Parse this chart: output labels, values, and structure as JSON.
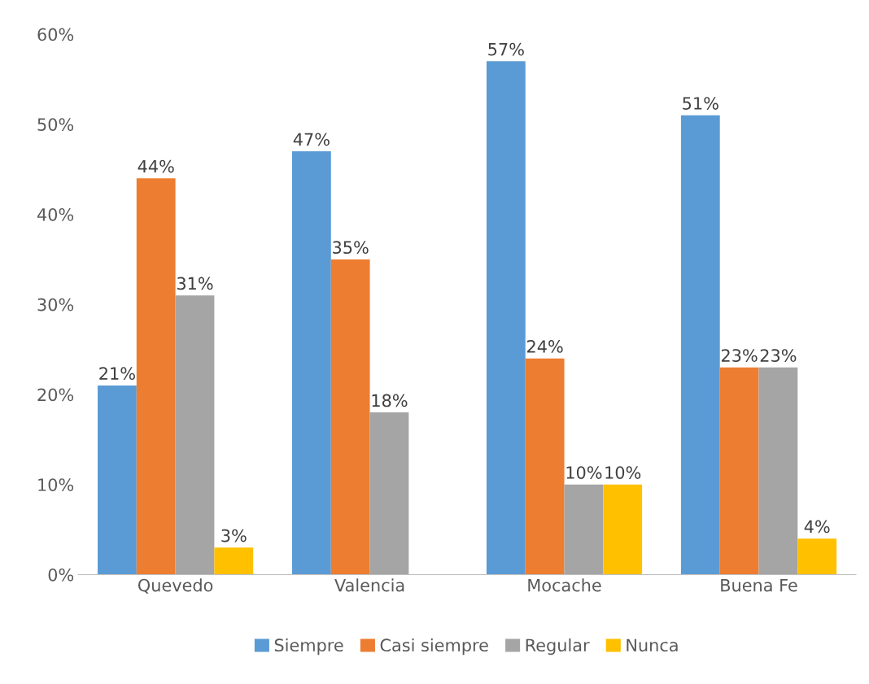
{
  "chart_data": {
    "type": "bar",
    "categories": [
      "Quevedo",
      "Valencia",
      "Mocache",
      "Buena Fe"
    ],
    "series": [
      {
        "name": "Siempre",
        "color": "#5b9bd5",
        "values": [
          21,
          47,
          57,
          51
        ],
        "value_labels": [
          "21%",
          "47%",
          "57%",
          "51%"
        ]
      },
      {
        "name": "Casi siempre",
        "color": "#ed7d31",
        "values": [
          44,
          35,
          24,
          23
        ],
        "value_labels": [
          "44%",
          "35%",
          "24%",
          "23%"
        ]
      },
      {
        "name": "Regular",
        "color": "#a5a5a5",
        "values": [
          31,
          18,
          10,
          23
        ],
        "value_labels": [
          "31%",
          "18%",
          "10%",
          "23%"
        ]
      },
      {
        "name": "Nunca",
        "color": "#ffc000",
        "values": [
          3,
          null,
          10,
          4
        ],
        "value_labels": [
          "3%",
          null,
          "10%",
          "4%"
        ]
      }
    ],
    "ylim": [
      0,
      60
    ],
    "yticks": [
      {
        "value": 0,
        "label": "0%"
      },
      {
        "value": 10,
        "label": "10%"
      },
      {
        "value": 20,
        "label": "20%"
      },
      {
        "value": 30,
        "label": "30%"
      },
      {
        "value": 40,
        "label": "40%"
      },
      {
        "value": 50,
        "label": "50%"
      },
      {
        "value": 60,
        "label": "60%"
      }
    ],
    "grid": false,
    "legend": "bottom"
  }
}
